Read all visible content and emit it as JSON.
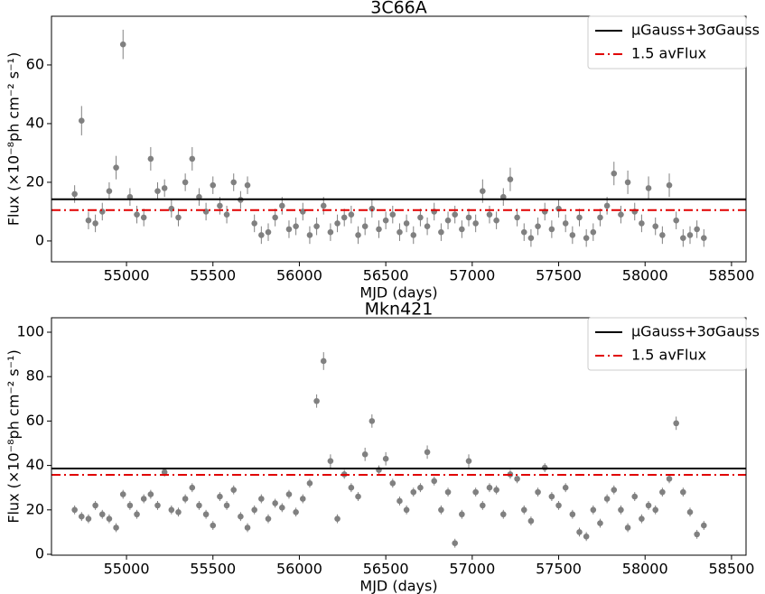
{
  "chart_data": [
    {
      "type": "scatter",
      "title": "3C66A",
      "xlabel": "MJD (days)",
      "ylabel": "Flux (×10⁻⁸ph cm⁻² s⁻¹)",
      "xlim": [
        54566,
        58584
      ],
      "ylim": [
        -7.1,
        76.6
      ],
      "xticks": [
        55000,
        55500,
        56000,
        56500,
        57000,
        57500,
        58000,
        58500
      ],
      "yticks": [
        0,
        20,
        40,
        60
      ],
      "color": "#808080",
      "legend": "upper right",
      "x": [
        54700,
        54740,
        54780,
        54820,
        54860,
        54900,
        54940,
        54980,
        55020,
        55060,
        55100,
        55140,
        55180,
        55220,
        55260,
        55300,
        55340,
        55380,
        55420,
        55460,
        55500,
        55540,
        55580,
        55620,
        55660,
        55700,
        55740,
        55780,
        55820,
        55860,
        55900,
        55940,
        55980,
        56020,
        56060,
        56100,
        56140,
        56180,
        56220,
        56260,
        56300,
        56340,
        56380,
        56420,
        56460,
        56500,
        56540,
        56580,
        56620,
        56660,
        56700,
        56740,
        56780,
        56820,
        56860,
        56900,
        56940,
        56980,
        57020,
        57060,
        57100,
        57140,
        57180,
        57220,
        57260,
        57300,
        57340,
        57380,
        57420,
        57460,
        57500,
        57540,
        57580,
        57620,
        57660,
        57700,
        57740,
        57780,
        57820,
        57860,
        57900,
        57940,
        57980,
        58020,
        58060,
        58100,
        58140,
        58180,
        58220,
        58260,
        58300,
        58340
      ],
      "values": [
        16,
        41,
        7,
        6,
        10,
        17,
        25,
        67,
        15,
        9,
        8,
        28,
        17,
        18,
        11,
        8,
        20,
        28,
        15,
        10,
        19,
        12,
        9,
        20,
        14,
        19,
        6,
        2,
        3,
        8,
        12,
        4,
        5,
        10,
        2,
        5,
        12,
        3,
        6,
        8,
        9,
        2,
        5,
        11,
        4,
        7,
        9,
        3,
        6,
        2,
        8,
        5,
        10,
        3,
        7,
        9,
        4,
        8,
        6,
        17,
        9,
        7,
        15,
        21,
        8,
        3,
        1,
        5,
        10,
        4,
        11,
        6,
        2,
        8,
        1,
        3,
        8,
        12,
        23,
        9,
        20,
        10,
        6,
        18,
        5,
        2,
        19,
        7,
        1,
        2,
        4,
        1
      ],
      "errors": [
        3,
        5,
        3,
        3,
        3,
        3,
        4,
        5,
        3,
        3,
        3,
        4,
        3,
        3,
        3,
        3,
        3,
        4,
        3,
        3,
        3,
        3,
        3,
        3,
        3,
        3,
        3,
        3,
        3,
        3,
        3,
        3,
        3,
        3,
        3,
        3,
        3,
        3,
        3,
        3,
        3,
        3,
        3,
        3,
        3,
        3,
        3,
        3,
        3,
        3,
        3,
        3,
        3,
        3,
        3,
        3,
        3,
        3,
        3,
        4,
        3,
        3,
        3,
        4,
        3,
        3,
        3,
        3,
        3,
        3,
        3,
        3,
        3,
        3,
        3,
        3,
        3,
        3,
        4,
        3,
        4,
        3,
        3,
        4,
        3,
        3,
        4,
        3,
        3,
        3,
        3,
        3
      ],
      "lines": [
        {
          "name": "μGauss+3σGauss",
          "value": 14.2,
          "color": "#000000",
          "style": "solid"
        },
        {
          "name": "1.5 avFlux",
          "value": 10.5,
          "color": "#e00000",
          "style": "dashdot"
        }
      ]
    },
    {
      "type": "scatter",
      "title": "Mkn421",
      "xlabel": "MJD (days)",
      "ylabel": "Flux (×10⁻⁸ph cm⁻² s⁻¹)",
      "xlim": [
        54566,
        58584
      ],
      "ylim": [
        -0.4,
        106.5
      ],
      "xticks": [
        55000,
        55500,
        56000,
        56500,
        57000,
        57500,
        58000,
        58500
      ],
      "yticks": [
        0,
        20,
        40,
        60,
        80,
        100
      ],
      "color": "#808080",
      "legend": "upper right",
      "x": [
        54700,
        54740,
        54780,
        54820,
        54860,
        54900,
        54940,
        54980,
        55020,
        55060,
        55100,
        55140,
        55180,
        55220,
        55260,
        55300,
        55340,
        55380,
        55420,
        55460,
        55500,
        55540,
        55580,
        55620,
        55660,
        55700,
        55740,
        55780,
        55820,
        55860,
        55900,
        55940,
        55980,
        56020,
        56060,
        56100,
        56140,
        56180,
        56220,
        56260,
        56300,
        56340,
        56380,
        56420,
        56460,
        56500,
        56540,
        56580,
        56620,
        56660,
        56700,
        56740,
        56780,
        56820,
        56860,
        56900,
        56940,
        56980,
        57020,
        57060,
        57100,
        57140,
        57180,
        57220,
        57260,
        57300,
        57340,
        57380,
        57420,
        57460,
        57500,
        57540,
        57580,
        57620,
        57660,
        57700,
        57740,
        57780,
        57820,
        57860,
        57900,
        57940,
        57980,
        58020,
        58060,
        58100,
        58140,
        58180,
        58220,
        58260,
        58300,
        58340
      ],
      "values": [
        20,
        17,
        16,
        22,
        18,
        16,
        12,
        27,
        22,
        18,
        25,
        27,
        22,
        37,
        20,
        19,
        25,
        30,
        22,
        18,
        13,
        26,
        22,
        29,
        17,
        12,
        20,
        25,
        16,
        23,
        21,
        27,
        19,
        25,
        32,
        69,
        87,
        42,
        16,
        36,
        30,
        26,
        45,
        60,
        38,
        43,
        32,
        24,
        20,
        28,
        30,
        46,
        33,
        20,
        28,
        5,
        18,
        42,
        28,
        22,
        30,
        29,
        18,
        36,
        34,
        20,
        15,
        28,
        39,
        26,
        22,
        30,
        18,
        10,
        8,
        20,
        14,
        25,
        29,
        20,
        12,
        26,
        16,
        22,
        20,
        28,
        34,
        59,
        28,
        19,
        9,
        13
      ],
      "errors": [
        2,
        2,
        2,
        2,
        2,
        2,
        2,
        2,
        2,
        2,
        2,
        2,
        2,
        2,
        2,
        2,
        2,
        2,
        2,
        2,
        2,
        2,
        2,
        2,
        2,
        2,
        2,
        2,
        2,
        2,
        2,
        2,
        2,
        2,
        2,
        3,
        4,
        3,
        2,
        2,
        2,
        2,
        3,
        3,
        2,
        3,
        2,
        2,
        2,
        2,
        2,
        3,
        2,
        2,
        2,
        2,
        2,
        3,
        2,
        2,
        2,
        2,
        2,
        2,
        2,
        2,
        2,
        2,
        2,
        2,
        2,
        2,
        2,
        2,
        2,
        2,
        2,
        2,
        2,
        2,
        2,
        2,
        2,
        2,
        2,
        2,
        2,
        3,
        2,
        2,
        2,
        2
      ],
      "lines": [
        {
          "name": "μGauss+3σGauss",
          "value": 38.6,
          "color": "#000000",
          "style": "solid"
        },
        {
          "name": "1.5 avFlux",
          "value": 35.8,
          "color": "#e00000",
          "style": "dashdot"
        }
      ]
    }
  ]
}
